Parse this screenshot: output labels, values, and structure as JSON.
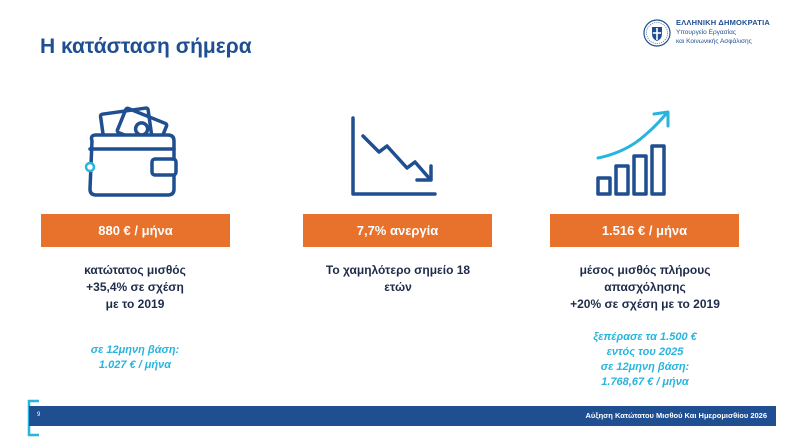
{
  "title": "Η κατάσταση σήμερα",
  "logo": {
    "line1": "ΕΛΛΗΝΙΚΗ ΔΗΜΟΚΡΑΤΙΑ",
    "line2": "Υπουργείο Εργασίας",
    "line3": "και Κοινωνικής Ασφάλισης"
  },
  "accent_colors": {
    "title": "#1f4f91",
    "badge": "#e8712c",
    "note": "#27b5de",
    "icon": "#1f4f91",
    "icon_accent": "#27b5de"
  },
  "columns": [
    {
      "icon": "wallet-icon",
      "badge": "880 € / μήνα",
      "desc": [
        "κατώτατος μισθός",
        "+35,4% σε σχέση",
        "με το 2019"
      ],
      "note": [
        "σε 12μηνη βάση:",
        "1.027 € / μήνα"
      ]
    },
    {
      "icon": "trend-down-icon",
      "badge": "7,7% ανεργία",
      "desc": [
        "Το χαμηλότερο σημείο 18",
        "ετών"
      ]
    },
    {
      "icon": "bar-chart-growth-icon",
      "badge": "1.516 € / μήνα",
      "desc": [
        "μέσος μισθός πλήρους",
        "απασχόλησης",
        "+20% σε σχέση με το 2019"
      ],
      "note": [
        "ξεπέρασε τα 1.500 €",
        "εντός του 2025",
        "σε 12μηνη βάση:",
        "1.768,67 € / μήνα"
      ]
    }
  ],
  "footer": {
    "page_number": "9",
    "text": "Αύξηση Κατώτατου Μισθού Και Ημερομισθίου 2026"
  }
}
